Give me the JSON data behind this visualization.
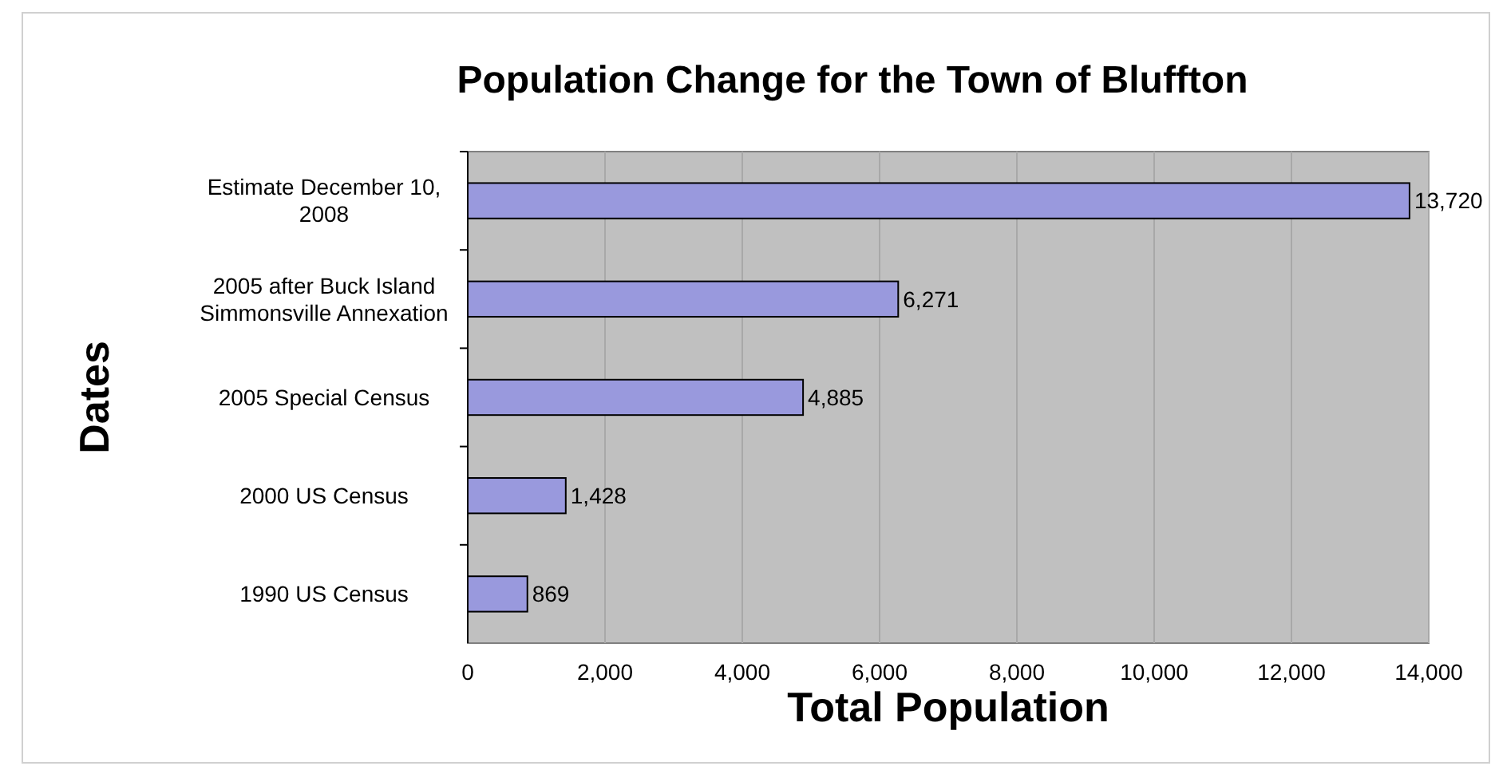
{
  "chart_data": {
    "type": "bar",
    "orientation": "horizontal",
    "title": "Population Change for the Town of Bluffton",
    "xlabel": "Total Population",
    "ylabel": "Dates",
    "categories": [
      "Estimate December 10, 2008",
      "2005 after Buck Island Simmonsville Annexation",
      "2005 Special Census",
      "2000 US Census",
      "1990 US Census"
    ],
    "values": [
      13720,
      6271,
      4885,
      1428,
      869
    ],
    "value_labels": [
      "13,720",
      "6,271",
      "4,885",
      "1,428",
      "869"
    ],
    "color": "#9999dd",
    "xlim": [
      0,
      14000
    ],
    "xticks": [
      0,
      {
        "value": 2000,
        "label": "2,000"
      },
      {
        "value": 4000,
        "label": "4,000"
      },
      {
        "value": 6000,
        "label": "6,000"
      },
      {
        "value": 8000,
        "label": "8,000"
      },
      {
        "value": 10000,
        "label": "10,000"
      },
      {
        "value": 12000,
        "label": "12,000"
      },
      {
        "value": 14000,
        "label": "14,000"
      }
    ],
    "grid": "x"
  }
}
